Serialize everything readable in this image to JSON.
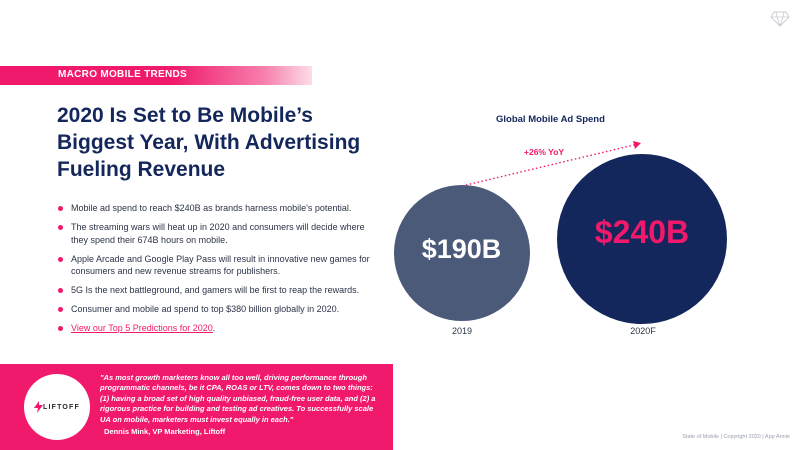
{
  "section_label": "MACRO MOBILE TRENDS",
  "headline": "2020 Is Set to Be Mobile’s Biggest Year, With Advertising Fueling Revenue",
  "bullets": [
    "Mobile ad spend to reach $240B as brands harness mobile's potential.",
    "The streaming wars will heat up in 2020 and consumers will decide where they spend their 674B hours on mobile.",
    "Apple Arcade and Google Play Pass will result in innovative new games for consumers and new revenue streams for publishers.",
    "5G Is the next battleground, and gamers will be first to reap the rewards.",
    "Consumer and mobile ad spend to top $380 billion globally in 2020."
  ],
  "link_text": "View our Top 5 Predictions for 2020",
  "link_suffix": ".",
  "quote": {
    "logo_text": "LIFTOFF",
    "text": "\"As most growth marketers know all too well, driving performance through programmatic channels, be it CPA, ROAS or LTV, comes down to two things: (1) having a broad set of high quality unbiased, fraud-free user data, and (2) a rigorous practice for building and testing ad creatives. To successfully scale UA on mobile, marketers must invest equally in each.\"",
    "author": "Dennis Mink, VP Marketing, Liftoff"
  },
  "chart_data": {
    "type": "bubble",
    "title": "Global Mobile Ad Spend",
    "annotation": "+26% YoY",
    "categories": [
      "2019",
      "2020F"
    ],
    "values": [
      190,
      240
    ],
    "value_labels": [
      "$190B",
      "$240B"
    ],
    "unit": "$B",
    "colors": [
      "#4a5a78",
      "#14275c"
    ],
    "value_label_colors": [
      "#ffffff",
      "#f0196b"
    ]
  },
  "footer": "State of Mobile  |  Copyright 2020  |  App Annie",
  "colors": {
    "accent": "#f0196b",
    "navy": "#14275c",
    "slate": "#4a5a78"
  },
  "icons": {
    "brand": "diamond-logo-icon"
  }
}
